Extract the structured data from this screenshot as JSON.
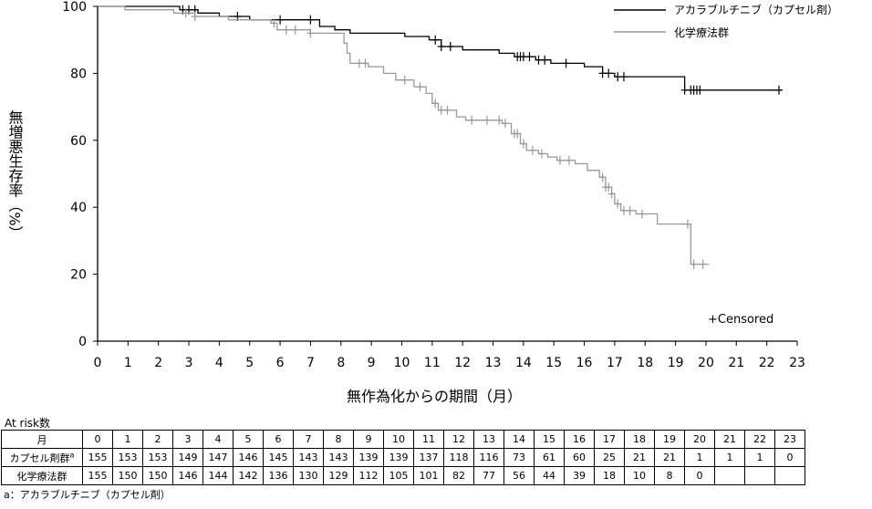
{
  "chart_data": {
    "type": "line",
    "chart_style": "kaplan-meier step",
    "ylabel": "無増悪生存率（%）",
    "xlabel": "無作為化からの期間（月）",
    "xlim": [
      0,
      23
    ],
    "ylim": [
      0,
      100
    ],
    "x_ticks": [
      0,
      1,
      2,
      3,
      4,
      5,
      6,
      7,
      8,
      9,
      10,
      11,
      12,
      13,
      14,
      15,
      16,
      17,
      18,
      19,
      20,
      21,
      22,
      23
    ],
    "y_ticks": [
      0,
      20,
      40,
      60,
      80,
      100
    ],
    "grid": false,
    "legend_position": "top-right",
    "censor_note": "+Censored",
    "series": [
      {
        "name": "アカラブルチニブ（カプセル剤）",
        "color": "#000000",
        "steps": [
          [
            0,
            100
          ],
          [
            2.7,
            99
          ],
          [
            3.3,
            98
          ],
          [
            4,
            97
          ],
          [
            5,
            96
          ],
          [
            7.3,
            94
          ],
          [
            7.8,
            93
          ],
          [
            8.3,
            92
          ],
          [
            10.1,
            91
          ],
          [
            10.9,
            90
          ],
          [
            11.3,
            88
          ],
          [
            12,
            87
          ],
          [
            13.2,
            86
          ],
          [
            13.7,
            85
          ],
          [
            14.4,
            84
          ],
          [
            14.9,
            83
          ],
          [
            16,
            82
          ],
          [
            16.6,
            80
          ],
          [
            17,
            79
          ],
          [
            19.3,
            75
          ],
          [
            22.5,
            75
          ]
        ],
        "censor_times": [
          2.8,
          3.0,
          3.2,
          4.6,
          6.0,
          7.0,
          11.1,
          11.3,
          11.6,
          13.8,
          13.9,
          14.0,
          14.2,
          14.5,
          14.7,
          15.4,
          16.6,
          16.8,
          17.1,
          17.3,
          19.3,
          19.5,
          19.6,
          19.7,
          19.8,
          22.4
        ]
      },
      {
        "name": "化学療法群",
        "color": "#999999",
        "steps": [
          [
            0,
            100
          ],
          [
            0.9,
            99
          ],
          [
            2.5,
            98
          ],
          [
            3.2,
            97
          ],
          [
            4.3,
            96
          ],
          [
            5.7,
            95
          ],
          [
            5.9,
            93
          ],
          [
            7.0,
            92
          ],
          [
            8.1,
            89
          ],
          [
            8.2,
            86
          ],
          [
            8.3,
            83
          ],
          [
            8.9,
            82
          ],
          [
            9.4,
            80
          ],
          [
            9.8,
            78
          ],
          [
            10.4,
            76
          ],
          [
            10.8,
            74
          ],
          [
            11.0,
            71
          ],
          [
            11.2,
            69
          ],
          [
            11.8,
            67
          ],
          [
            12.1,
            66
          ],
          [
            13.3,
            65
          ],
          [
            13.6,
            62
          ],
          [
            13.9,
            59
          ],
          [
            14.1,
            57
          ],
          [
            14.5,
            56
          ],
          [
            14.8,
            55
          ],
          [
            15.1,
            54
          ],
          [
            15.7,
            53
          ],
          [
            16.1,
            51
          ],
          [
            16.5,
            49
          ],
          [
            16.7,
            46
          ],
          [
            16.9,
            44
          ],
          [
            17.0,
            41
          ],
          [
            17.2,
            39
          ],
          [
            17.7,
            38
          ],
          [
            18.4,
            35
          ],
          [
            19.5,
            23
          ],
          [
            20.1,
            23
          ]
        ],
        "censor_times": [
          2.9,
          3.2,
          5.8,
          6.2,
          6.5,
          7.0,
          8.6,
          8.8,
          10.1,
          10.6,
          11.1,
          11.3,
          11.5,
          12.3,
          12.8,
          13.2,
          13.4,
          13.7,
          13.8,
          14.0,
          14.3,
          14.6,
          15.2,
          15.5,
          16.6,
          16.7,
          16.8,
          16.9,
          17.1,
          17.3,
          17.5,
          17.9,
          19.4,
          19.6,
          19.9
        ]
      }
    ]
  },
  "risk_table": {
    "title": "At risk数",
    "header_label": "月",
    "months": [
      "0",
      "1",
      "2",
      "3",
      "4",
      "5",
      "6",
      "7",
      "8",
      "9",
      "10",
      "11",
      "12",
      "13",
      "14",
      "15",
      "16",
      "17",
      "18",
      "19",
      "20",
      "21",
      "22",
      "23"
    ],
    "rows": [
      {
        "label": "カプセル剤群",
        "sup": "a",
        "values": [
          "155",
          "153",
          "153",
          "149",
          "147",
          "146",
          "145",
          "143",
          "143",
          "139",
          "139",
          "137",
          "118",
          "116",
          "73",
          "61",
          "60",
          "25",
          "21",
          "21",
          "1",
          "1",
          "1",
          "0"
        ]
      },
      {
        "label": "化学療法群",
        "sup": "",
        "values": [
          "155",
          "150",
          "150",
          "146",
          "144",
          "142",
          "136",
          "130",
          "129",
          "112",
          "105",
          "101",
          "82",
          "77",
          "56",
          "44",
          "39",
          "18",
          "10",
          "8",
          "0",
          "",
          "",
          ""
        ]
      }
    ],
    "footnote": "a：アカラブルチニブ（カプセル剤）"
  }
}
